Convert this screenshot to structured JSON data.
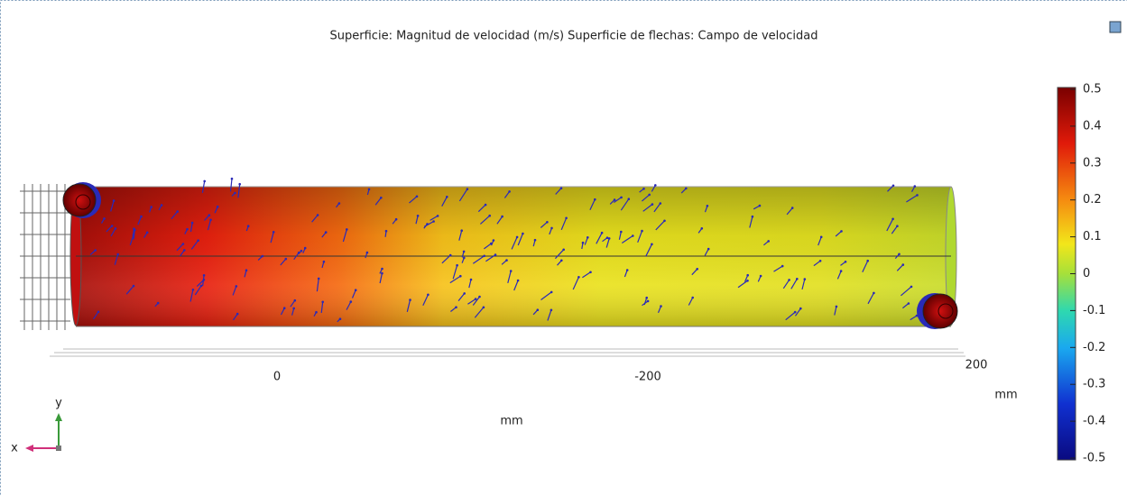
{
  "header": {
    "title": "Superficie: Magnitud de velocidad (m/s)  Superficie de flechas: Campo de velocidad"
  },
  "colorbar": {
    "ticks": [
      "0.5",
      "0.4",
      "0.3",
      "0.2",
      "0.1",
      "0",
      "-0.1",
      "-0.2",
      "-0.3",
      "-0.4",
      "-0.5"
    ]
  },
  "axis": {
    "ticks": [
      "0",
      "-200",
      "200"
    ],
    "unit_right": "mm",
    "unit_bottom": "mm"
  },
  "triad": {
    "x": "x",
    "y": "y"
  }
}
